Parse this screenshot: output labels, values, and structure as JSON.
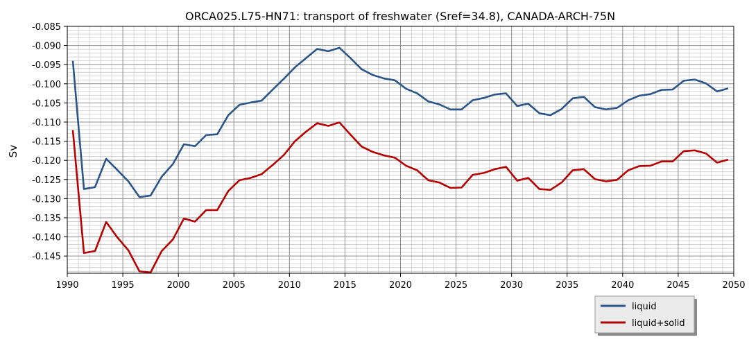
{
  "chart_data": {
    "type": "line",
    "title": "ORCA025.L75-HN71: transport of freshwater (Sref=34.8), CANADA-ARCH-75N",
    "xlabel": "",
    "ylabel": "Sv",
    "xlim": [
      1990,
      2050
    ],
    "ylim": [
      -0.1495,
      -0.085
    ],
    "xticks": [
      1990,
      1995,
      2000,
      2005,
      2010,
      2015,
      2020,
      2025,
      2030,
      2035,
      2040,
      2045,
      2050
    ],
    "xtick_labels": [
      "1990",
      "1995",
      "2000",
      "2005",
      "2010",
      "2015",
      "2020",
      "2025",
      "2030",
      "2035",
      "2040",
      "2045",
      "2050"
    ],
    "yticks": [
      -0.145,
      -0.14,
      -0.135,
      -0.13,
      -0.125,
      -0.12,
      -0.115,
      -0.11,
      -0.105,
      -0.1,
      -0.095,
      -0.09,
      -0.085
    ],
    "ytick_labels": [
      "-0.145",
      "-0.140",
      "-0.135",
      "-0.130",
      "-0.125",
      "-0.120",
      "-0.115",
      "-0.110",
      "-0.105",
      "-0.100",
      "-0.095",
      "-0.090",
      "-0.085"
    ],
    "grid": true,
    "legend_position": "bottom-right outside",
    "x": [
      1990.5,
      1991.5,
      1992.5,
      1993.5,
      1994.5,
      1995.5,
      1996.5,
      1997.5,
      1998.5,
      1999.5,
      2000.5,
      2001.5,
      2002.5,
      2003.5,
      2004.5,
      2005.5,
      2006.5,
      2007.5,
      2008.5,
      2009.5,
      2010.5,
      2011.5,
      2012.5,
      2013.5,
      2014.5,
      2015.5,
      2016.5,
      2017.5,
      2018.5,
      2019.5,
      2020.5,
      2021.5,
      2022.5,
      2023.5,
      2024.5,
      2025.5,
      2026.5,
      2027.5,
      2028.5,
      2029.5,
      2030.5,
      2031.5,
      2032.5,
      2033.5,
      2034.5,
      2035.5,
      2036.5,
      2037.5,
      2038.5,
      2039.5,
      2040.5,
      2041.5,
      2042.5,
      2043.5,
      2044.5,
      2045.5,
      2046.5,
      2047.5,
      2048.5,
      2049.5
    ],
    "series": [
      {
        "name": "liquid",
        "color": "#2b5589",
        "values": [
          -0.094,
          -0.1275,
          -0.127,
          -0.1196,
          -0.1225,
          -0.1255,
          -0.1296,
          -0.1292,
          -0.1243,
          -0.121,
          -0.1158,
          -0.1163,
          -0.1134,
          -0.1132,
          -0.1082,
          -0.1055,
          -0.1049,
          -0.1044,
          -0.1015,
          -0.0987,
          -0.0957,
          -0.0933,
          -0.0909,
          -0.0915,
          -0.0906,
          -0.0933,
          -0.0962,
          -0.0977,
          -0.0986,
          -0.0991,
          -0.1013,
          -0.1025,
          -0.1046,
          -0.1054,
          -0.1067,
          -0.1067,
          -0.1043,
          -0.1037,
          -0.1028,
          -0.1025,
          -0.1058,
          -0.1052,
          -0.1077,
          -0.1082,
          -0.1066,
          -0.1038,
          -0.1034,
          -0.1061,
          -0.1067,
          -0.1063,
          -0.1043,
          -0.1031,
          -0.1027,
          -0.1016,
          -0.1015,
          -0.0992,
          -0.0989,
          -0.0999,
          -0.102,
          -0.1012
        ]
      },
      {
        "name": "liquid+solid",
        "color": "#b40000",
        "values": [
          -0.1121,
          -0.1442,
          -0.1437,
          -0.1361,
          -0.1401,
          -0.1435,
          -0.149,
          -0.1493,
          -0.1437,
          -0.1407,
          -0.1352,
          -0.136,
          -0.133,
          -0.133,
          -0.128,
          -0.1252,
          -0.1246,
          -0.1236,
          -0.1212,
          -0.1186,
          -0.115,
          -0.1125,
          -0.1103,
          -0.111,
          -0.1101,
          -0.1133,
          -0.1164,
          -0.1178,
          -0.1187,
          -0.1193,
          -0.1214,
          -0.1226,
          -0.1252,
          -0.1258,
          -0.1272,
          -0.1271,
          -0.1238,
          -0.1233,
          -0.1223,
          -0.1217,
          -0.1253,
          -0.1246,
          -0.1275,
          -0.1277,
          -0.1258,
          -0.1226,
          -0.1223,
          -0.1249,
          -0.1255,
          -0.1251,
          -0.1226,
          -0.1215,
          -0.1214,
          -0.1203,
          -0.1203,
          -0.1176,
          -0.1174,
          -0.1182,
          -0.1206,
          -0.1198
        ]
      }
    ]
  }
}
